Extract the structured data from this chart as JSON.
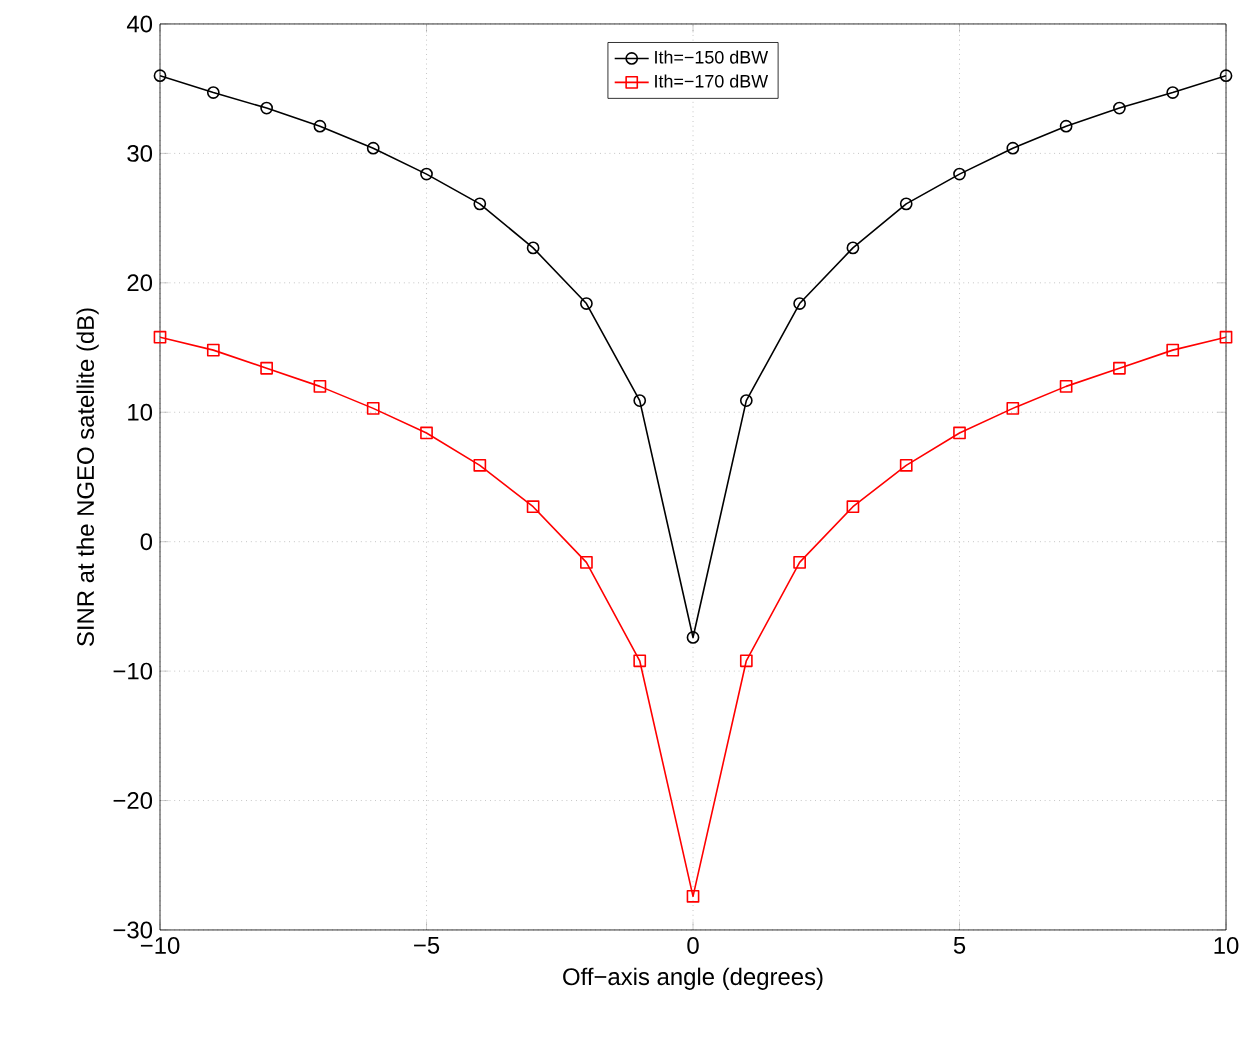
{
  "chart_data": {
    "type": "line",
    "xlabel": "Off−axis angle (degrees)",
    "ylabel": "SINR at the NGEO satellite (dB)",
    "x": [
      -10,
      -9,
      -8,
      -7,
      -6,
      -5,
      -4,
      -3,
      -2,
      -1,
      0,
      1,
      2,
      3,
      4,
      5,
      6,
      7,
      8,
      9,
      10
    ],
    "series": [
      {
        "name": "Ith=−150 dBW",
        "color": "#000000",
        "marker": "circle",
        "values": [
          36.0,
          34.7,
          33.5,
          32.1,
          30.4,
          28.4,
          26.1,
          22.7,
          18.4,
          10.9,
          -7.4,
          10.9,
          18.4,
          22.7,
          26.1,
          28.4,
          30.4,
          32.1,
          33.5,
          34.7,
          36.0
        ]
      },
      {
        "name": "Ith=−170 dBW",
        "color": "#ff0000",
        "marker": "square",
        "values": [
          15.8,
          14.8,
          13.4,
          12.0,
          10.3,
          8.4,
          5.9,
          2.7,
          -1.6,
          -9.2,
          -27.4,
          -9.2,
          -1.6,
          2.7,
          5.9,
          8.4,
          10.3,
          12.0,
          13.4,
          14.8,
          15.8
        ]
      }
    ],
    "xlim": [
      -10,
      10
    ],
    "ylim": [
      -30,
      40
    ],
    "xticks": [
      {
        "value": -10,
        "label": "−10"
      },
      {
        "value": -5,
        "label": "−5"
      },
      0,
      5,
      10
    ],
    "yticks": [
      {
        "value": -30,
        "label": "−30"
      },
      {
        "value": -20,
        "label": "−20"
      },
      {
        "value": -10,
        "label": "−10"
      },
      0,
      10,
      20,
      30,
      40
    ],
    "grid": true,
    "line_style": "solid",
    "legend": "top"
  }
}
